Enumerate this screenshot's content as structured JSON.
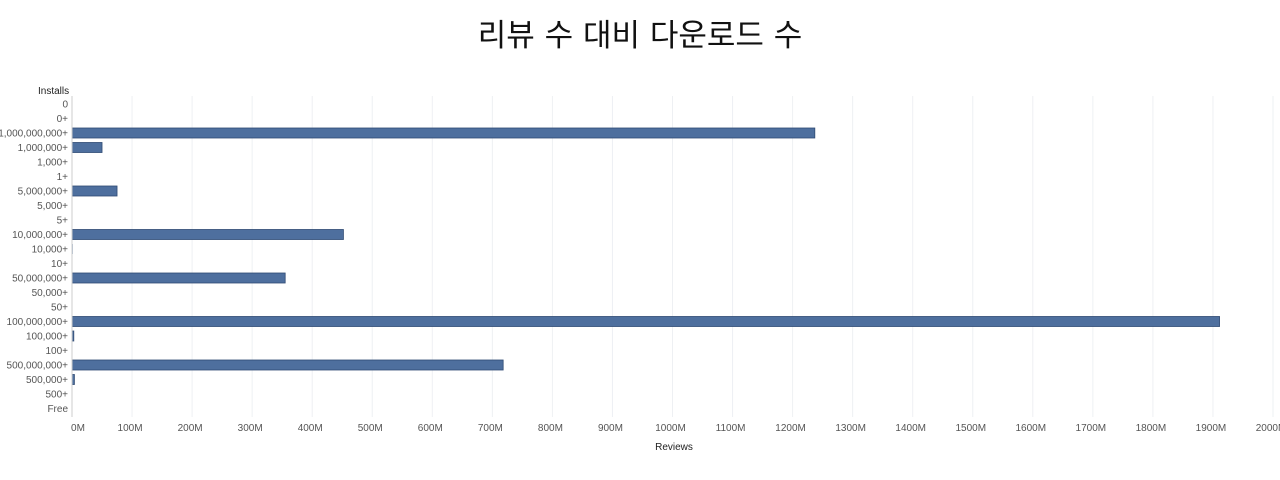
{
  "chart_data": {
    "type": "bar",
    "orientation": "horizontal",
    "title": "리뷰 수 대비 다운로드 수",
    "ylabel": "Installs",
    "xlabel": "Reviews",
    "categories": [
      "0",
      "0+",
      "1,000,000,000+",
      "1,000,000+",
      "1,000+",
      "1+",
      "5,000,000+",
      "5,000+",
      "5+",
      "10,000,000+",
      "10,000+",
      "10+",
      "50,000,000+",
      "50,000+",
      "50+",
      "100,000,000+",
      "100,000+",
      "100+",
      "500,000,000+",
      "500,000+",
      "500+",
      "Free"
    ],
    "values": [
      0,
      0,
      1237,
      50,
      0.5,
      0,
      75,
      0.3,
      0,
      452,
      1.2,
      0,
      355,
      0.8,
      0,
      1911,
      3,
      0.1,
      718,
      4,
      0.05,
      0
    ],
    "value_unit": "M",
    "xlim": [
      0,
      2000
    ],
    "xticks": [
      0,
      100,
      200,
      300,
      400,
      500,
      600,
      700,
      800,
      900,
      1000,
      1100,
      1200,
      1300,
      1400,
      1500,
      1600,
      1700,
      1800,
      1900,
      2000
    ],
    "xtick_labels": [
      "0M",
      "100M",
      "200M",
      "300M",
      "400M",
      "500M",
      "600M",
      "700M",
      "800M",
      "900M",
      "1000M",
      "1100M",
      "1200M",
      "1300M",
      "1400M",
      "1500M",
      "1600M",
      "1700M",
      "1800M",
      "1900M",
      "2000M"
    ],
    "grid": true,
    "legend": "none",
    "colors": {
      "bar": "#4e6f9e",
      "bar_edge": "#2f4a73",
      "grid": "#eef0f3",
      "axis": "#cccccc"
    }
  }
}
